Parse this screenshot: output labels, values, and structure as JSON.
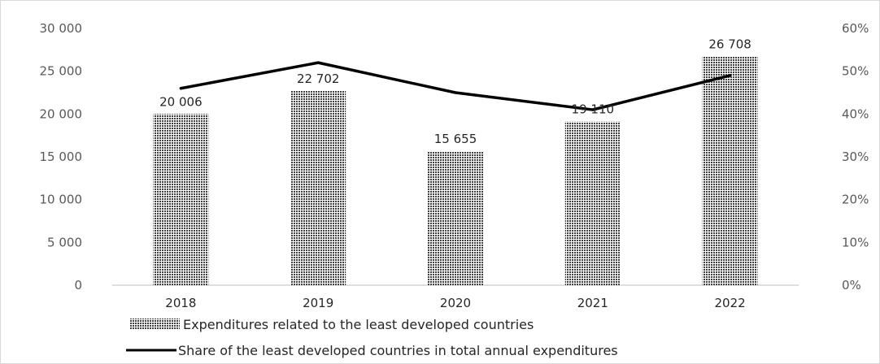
{
  "chart_data": {
    "type": "bar",
    "title": "",
    "xlabel": "",
    "ylabel": "",
    "categories": [
      "2018",
      "2019",
      "2020",
      "2021",
      "2022"
    ],
    "series": [
      {
        "name": "Expenditures related to the least developed countries",
        "type": "bar",
        "axis": "left",
        "values": [
          20006,
          22702,
          15655,
          19110,
          26708
        ],
        "labels": [
          "20 006",
          "22 702",
          "15 655",
          "19 110",
          "26 708"
        ]
      },
      {
        "name": "Share of the least developed countries in total annual expenditures",
        "type": "line",
        "axis": "right",
        "values": [
          46,
          52,
          45,
          41,
          49
        ]
      }
    ],
    "ylim": [
      0,
      30000
    ],
    "y_ticks": [
      "0",
      "5 000",
      "10 000",
      "15 000",
      "20 000",
      "25 000",
      "30 000"
    ],
    "y2lim": [
      0,
      60
    ],
    "y2_ticks": [
      "0%",
      "10%",
      "20%",
      "30%",
      "40%",
      "50%",
      "60%"
    ],
    "grid": false,
    "legend_position": "bottom",
    "colors": {
      "bar_pattern": "#404040",
      "line": "#000000",
      "axis": "#bfbfbf"
    }
  }
}
